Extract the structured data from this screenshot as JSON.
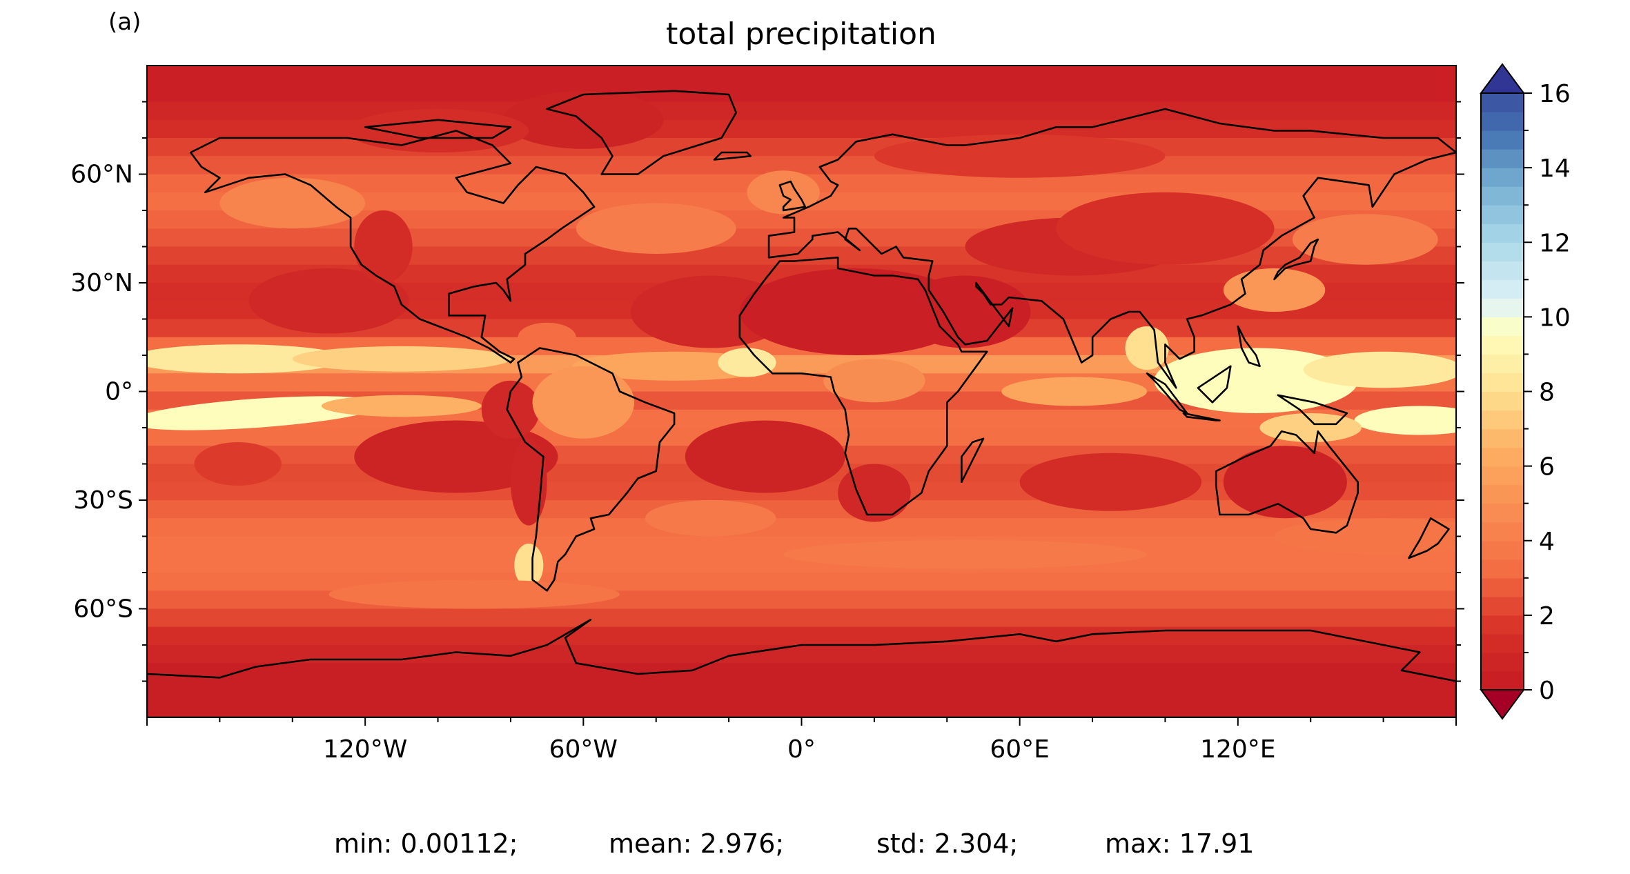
{
  "panel_label": "(a)",
  "title": "total precipitation",
  "lat_ticks": [
    "60°N",
    "30°N",
    "0°",
    "30°S",
    "60°S"
  ],
  "lon_ticks": [
    "120°W",
    "60°W",
    "0°",
    "60°E",
    "120°E"
  ],
  "colorbar": {
    "ticks": [
      "16",
      "14",
      "12",
      "10",
      "8",
      "6",
      "4",
      "2",
      "0"
    ],
    "levels": [
      0,
      0.5,
      1,
      1.5,
      2,
      2.5,
      3,
      3.5,
      4,
      4.5,
      5,
      5.5,
      6,
      6.5,
      7,
      7.5,
      8,
      8.5,
      9,
      9.5,
      10,
      10.5,
      11,
      11.5,
      12,
      12.5,
      13,
      13.5,
      14,
      14.5,
      15,
      15.5,
      16
    ],
    "extend": "both",
    "palette": "RdYlBu",
    "under_color": "#a50026",
    "over_color": "#313695"
  },
  "stats": {
    "min": "min: 0.00112;",
    "mean": "mean: 2.976;",
    "std": "std: 2.304;",
    "max": "max: 17.91"
  }
}
